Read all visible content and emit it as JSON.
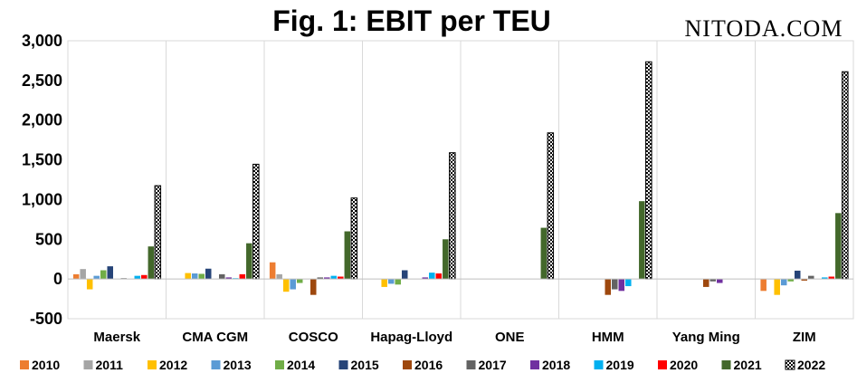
{
  "watermark": "NITODA.COM",
  "chart_data": {
    "type": "bar",
    "title": "Fig. 1: EBIT per TEU",
    "xlabel": "",
    "ylabel": "",
    "ylim": [
      -500,
      3000
    ],
    "yticks": [
      -500,
      0,
      500,
      1000,
      1500,
      2000,
      2500,
      3000
    ],
    "ytick_labels": [
      "-500",
      "0",
      "500",
      "1,000",
      "1,500",
      "2,000",
      "2,500",
      "3,000"
    ],
    "grid": "vertical category separators",
    "legend_position": "bottom",
    "categories": [
      "Maersk",
      "CMA CGM",
      "COSCO",
      "Hapag-Lloyd",
      "ONE",
      "HMM",
      "Yang Ming",
      "ZIM"
    ],
    "series": [
      {
        "name": "2010",
        "color": "#ED7D31",
        "values": [
          60,
          null,
          210,
          null,
          null,
          null,
          null,
          -150
        ]
      },
      {
        "name": "2011",
        "color": "#A5A5A5",
        "values": [
          125,
          null,
          60,
          null,
          null,
          null,
          null,
          null
        ]
      },
      {
        "name": "2012",
        "color": "#FFC000",
        "values": [
          -130,
          75,
          -160,
          -100,
          null,
          null,
          null,
          -200
        ]
      },
      {
        "name": "2013",
        "color": "#5B9BD5",
        "values": [
          40,
          70,
          -130,
          -60,
          null,
          null,
          null,
          -80
        ]
      },
      {
        "name": "2014",
        "color": "#70AD47",
        "values": [
          110,
          65,
          -50,
          -70,
          null,
          null,
          null,
          -30
        ]
      },
      {
        "name": "2015",
        "color": "#264478",
        "values": [
          160,
          130,
          null,
          110,
          null,
          null,
          null,
          105
        ]
      },
      {
        "name": "2016",
        "color": "#9E480E",
        "values": [
          null,
          null,
          -200,
          null,
          null,
          -200,
          -100,
          -20
        ]
      },
      {
        "name": "2017",
        "color": "#636363",
        "values": [
          10,
          60,
          20,
          null,
          null,
          -130,
          -30,
          40
        ]
      },
      {
        "name": "2018",
        "color": "#7030A0",
        "values": [
          null,
          20,
          20,
          20,
          null,
          -150,
          -50,
          null
        ]
      },
      {
        "name": "2019",
        "color": "#00B0F0",
        "values": [
          40,
          10,
          40,
          80,
          null,
          -90,
          null,
          20
        ]
      },
      {
        "name": "2020",
        "color": "#FF0000",
        "values": [
          50,
          60,
          30,
          70,
          null,
          null,
          null,
          30
        ]
      },
      {
        "name": "2021",
        "color": "#43682B",
        "values": [
          410,
          450,
          600,
          500,
          645,
          980,
          null,
          830
        ]
      },
      {
        "name": "2022",
        "color": "#000000",
        "pattern": "checkerboard",
        "values": [
          1175,
          1445,
          1020,
          1590,
          1840,
          2735,
          null,
          2610
        ]
      }
    ]
  }
}
